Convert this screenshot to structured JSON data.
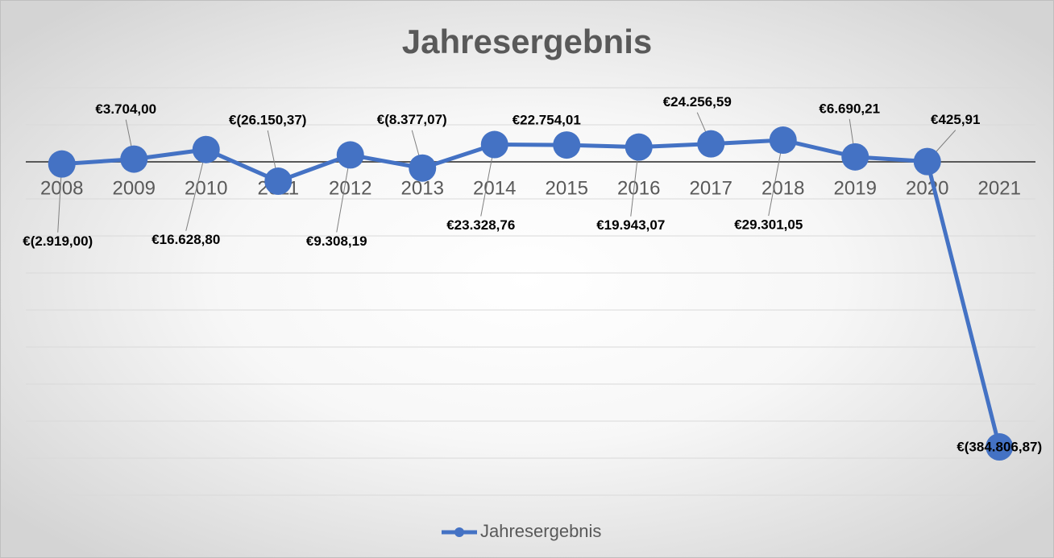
{
  "chart_data": {
    "type": "line",
    "title": "Jahresergebnis",
    "categories": [
      "2008",
      "2009",
      "2010",
      "2011",
      "2012",
      "2013",
      "2014",
      "2015",
      "2016",
      "2017",
      "2018",
      "2019",
      "2020",
      "2021"
    ],
    "series": [
      {
        "name": "Jahresergebnis",
        "color": "#4472c4",
        "values": [
          -2919.0,
          3704.0,
          16628.8,
          -26150.37,
          9308.19,
          -8377.07,
          23328.76,
          22754.01,
          19943.07,
          24256.59,
          29301.05,
          6690.21,
          425.91,
          -384806.87
        ],
        "value_labels": [
          "€(2.919,00)",
          "€3.704,00",
          "€16.628,80",
          "€(26.150,37)",
          "€9.308,19",
          "€(8.377,07)",
          "€23.328,76",
          "€22.754,01",
          "€19.943,07",
          "€24.256,59",
          "€29.301,05",
          "€6.690,21",
          "€425,91",
          "€(384.806,87)"
        ]
      }
    ],
    "ylim": [
      -450000,
      100000
    ],
    "yticks": [
      -450000,
      -400000,
      -350000,
      -300000,
      -250000,
      -200000,
      -150000,
      -100000,
      -50000,
      0,
      50000,
      100000
    ],
    "grid": true,
    "legend": "bottom"
  }
}
